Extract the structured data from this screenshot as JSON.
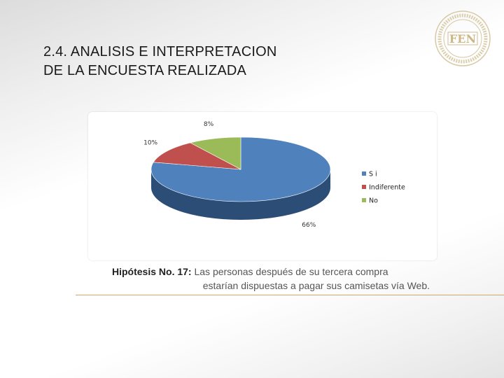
{
  "slide": {
    "title_line1": "2.4. ANALISIS E INTERPRETACION",
    "title_line2": "DE LA ENCUESTA REALIZADA",
    "caption_label": "Hipótesis No. 17:",
    "caption_text1": " Las personas después de su tercera compra",
    "caption_text2": "estarían dispuestas a pagar sus camisetas vía Web.",
    "logo_text": "FEN"
  },
  "chart_data": {
    "type": "pie",
    "style": "3d",
    "legend_position": "right",
    "categories": [
      "S i",
      "Indiferente",
      "No"
    ],
    "values": [
      66,
      10,
      8
    ],
    "labels": [
      "66%",
      "10%",
      "8%"
    ],
    "colors": [
      "#4f81bd",
      "#c0504d",
      "#9bbb59"
    ],
    "dark_colors": [
      "#2c4d75",
      "#7a2e2c",
      "#5f7a32"
    ]
  }
}
